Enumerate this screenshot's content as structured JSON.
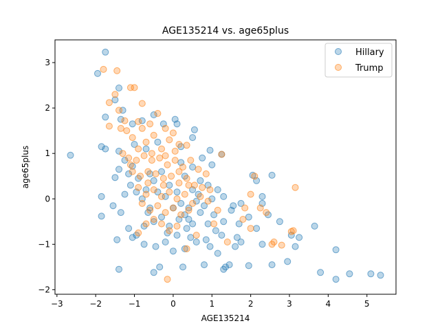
{
  "chart_data": {
    "type": "scatter",
    "title": "AGE135214 vs. age65plus",
    "xlabel": "AGE135214",
    "ylabel": "age65plus",
    "xlim": [
      -3.05,
      5.75
    ],
    "ylim": [
      -2.1,
      3.5
    ],
    "xticks": [
      -3,
      -2,
      -1,
      0,
      1,
      2,
      3,
      4,
      5
    ],
    "yticks": [
      -2,
      -1,
      0,
      1,
      2,
      3
    ],
    "grid": false,
    "legend_position": "top-right",
    "series": [
      {
        "name": "Hillary",
        "color": "#1f77b4",
        "alpha": 0.3,
        "points": [
          [
            -1.75,
            3.23
          ],
          [
            -1.95,
            2.76
          ],
          [
            -1.4,
            2.44
          ],
          [
            -1.5,
            2.18
          ],
          [
            -1.3,
            1.95
          ],
          [
            -1.75,
            1.8
          ],
          [
            -1.35,
            1.75
          ],
          [
            -1.05,
            1.65
          ],
          [
            -0.8,
            1.72
          ],
          [
            -0.5,
            1.85
          ],
          [
            -0.25,
            1.65
          ],
          [
            0.05,
            1.75
          ],
          [
            0.1,
            1.65
          ],
          [
            0.55,
            1.52
          ],
          [
            0.5,
            1.35
          ],
          [
            -1.85,
            1.15
          ],
          [
            -1.75,
            1.1
          ],
          [
            -1.4,
            1.05
          ],
          [
            -1.0,
            1.2
          ],
          [
            -0.7,
            1.1
          ],
          [
            -0.4,
            1.25
          ],
          [
            0.2,
            1.15
          ],
          [
            0.95,
            1.07
          ],
          [
            1.25,
            0.98
          ],
          [
            1.0,
            0.75
          ],
          [
            -2.65,
            0.96
          ],
          [
            -1.25,
            0.85
          ],
          [
            -1.05,
            0.72
          ],
          [
            -1.4,
            0.65
          ],
          [
            -1.15,
            0.55
          ],
          [
            -1.5,
            0.47
          ],
          [
            -1.1,
            0.3
          ],
          [
            -0.9,
            0.45
          ],
          [
            -0.7,
            0.2
          ],
          [
            -0.5,
            0.4
          ],
          [
            -0.3,
            0.6
          ],
          [
            -0.1,
            0.3
          ],
          [
            0.1,
            0.15
          ],
          [
            0.3,
            0.5
          ],
          [
            0.5,
            0.2
          ],
          [
            0.7,
            0.4
          ],
          [
            0.9,
            0.3
          ],
          [
            1.15,
            0.2
          ],
          [
            1.3,
            0.05
          ],
          [
            1.55,
            -0.15
          ],
          [
            1.75,
            -0.1
          ],
          [
            2.15,
            0.4
          ],
          [
            2.3,
            0.05
          ],
          [
            2.3,
            -0.1
          ],
          [
            2.55,
            0.52
          ],
          [
            2.05,
            0.52
          ],
          [
            -1.85,
            0.05
          ],
          [
            -1.55,
            -0.15
          ],
          [
            -1.85,
            -0.38
          ],
          [
            -1.35,
            -0.3
          ],
          [
            -1.15,
            -0.65
          ],
          [
            -0.95,
            -0.8
          ],
          [
            -0.75,
            -0.6
          ],
          [
            -0.5,
            -0.5
          ],
          [
            -0.3,
            -0.4
          ],
          [
            -0.1,
            -0.6
          ],
          [
            0.1,
            -0.8
          ],
          [
            0.3,
            -0.35
          ],
          [
            0.5,
            -0.55
          ],
          [
            0.7,
            -0.3
          ],
          [
            0.9,
            -0.55
          ],
          [
            1.1,
            -0.7
          ],
          [
            1.3,
            -0.5
          ],
          [
            1.5,
            -0.25
          ],
          [
            1.7,
            -0.55
          ],
          [
            1.95,
            -0.4
          ],
          [
            2.15,
            -0.65
          ],
          [
            2.45,
            -0.35
          ],
          [
            2.75,
            -0.5
          ],
          [
            3.05,
            -0.8
          ],
          [
            3.25,
            -0.85
          ],
          [
            3.65,
            -0.6
          ],
          [
            -1.45,
            -0.9
          ],
          [
            -1.05,
            -0.85
          ],
          [
            -0.75,
            -1.0
          ],
          [
            -0.45,
            -1.05
          ],
          [
            -0.2,
            -0.95
          ],
          [
            0.0,
            -1.15
          ],
          [
            0.3,
            -1.1
          ],
          [
            0.6,
            -0.95
          ],
          [
            0.95,
            -1.05
          ],
          [
            1.15,
            -1.2
          ],
          [
            1.35,
            -1.5
          ],
          [
            1.45,
            -1.45
          ],
          [
            1.65,
            -0.85
          ],
          [
            1.75,
            -0.95
          ],
          [
            1.95,
            -1.47
          ],
          [
            2.3,
            -1.0
          ],
          [
            2.55,
            -1.45
          ],
          [
            2.95,
            -1.38
          ],
          [
            3.15,
            -1.05
          ],
          [
            -1.4,
            -1.55
          ],
          [
            -0.35,
            -1.5
          ],
          [
            -0.5,
            -1.62
          ],
          [
            0.25,
            -1.5
          ],
          [
            0.8,
            -1.45
          ],
          [
            1.3,
            -1.55
          ],
          [
            3.8,
            -1.62
          ],
          [
            4.2,
            -1.12
          ],
          [
            4.2,
            -1.77
          ],
          [
            4.55,
            -1.65
          ],
          [
            5.1,
            -1.65
          ],
          [
            5.35,
            -1.68
          ],
          [
            -0.2,
            0.05
          ],
          [
            0.0,
            -0.2
          ],
          [
            0.2,
            -0.1
          ],
          [
            0.4,
            -0.2
          ],
          [
            0.6,
            -0.05
          ],
          [
            0.8,
            -0.15
          ],
          [
            1.0,
            0.0
          ],
          [
            -0.6,
            -0.2
          ],
          [
            -0.8,
            0.0
          ],
          [
            -0.4,
            0.15
          ],
          [
            0.2,
            0.8
          ],
          [
            0.5,
            0.7
          ],
          [
            0.75,
            0.9
          ],
          [
            0.35,
            -0.65
          ],
          [
            0.15,
            -0.45
          ],
          [
            0.45,
            -0.85
          ],
          [
            0.85,
            -0.9
          ],
          [
            1.05,
            -0.35
          ],
          [
            1.25,
            -0.8
          ],
          [
            1.6,
            -1.05
          ],
          [
            -0.15,
            -0.75
          ],
          [
            -0.65,
            -0.3
          ],
          [
            -0.95,
            0.15
          ],
          [
            -1.25,
            0.1
          ],
          [
            -0.6,
            0.55
          ],
          [
            0.65,
            0.1
          ],
          [
            0.4,
            -0.45
          ]
        ]
      },
      {
        "name": "Trump",
        "color": "#ff7f0e",
        "alpha": 0.3,
        "points": [
          [
            -1.8,
            2.85
          ],
          [
            -1.45,
            2.82
          ],
          [
            -1.5,
            2.3
          ],
          [
            -1.65,
            2.12
          ],
          [
            -1.1,
            2.45
          ],
          [
            -1.0,
            2.45
          ],
          [
            -0.8,
            2.1
          ],
          [
            -1.4,
            1.95
          ],
          [
            -1.35,
            1.55
          ],
          [
            -1.25,
            1.72
          ],
          [
            -1.65,
            1.6
          ],
          [
            -1.2,
            1.5
          ],
          [
            -0.9,
            1.7
          ],
          [
            -0.8,
            1.55
          ],
          [
            -0.6,
            1.65
          ],
          [
            -0.4,
            1.88
          ],
          [
            -0.2,
            1.55
          ],
          [
            0.0,
            1.45
          ],
          [
            -1.05,
            1.35
          ],
          [
            -0.9,
            1.1
          ],
          [
            -0.7,
            1.25
          ],
          [
            -0.5,
            1.4
          ],
          [
            -0.3,
            1.1
          ],
          [
            -0.1,
            1.3
          ],
          [
            0.15,
            1.2
          ],
          [
            0.35,
            1.18
          ],
          [
            -1.3,
            1.0
          ],
          [
            -1.15,
            0.9
          ],
          [
            -0.95,
            0.85
          ],
          [
            -0.75,
            0.95
          ],
          [
            -0.55,
            0.85
          ],
          [
            -0.35,
            0.9
          ],
          [
            -0.15,
            0.75
          ],
          [
            0.05,
            0.85
          ],
          [
            0.25,
            0.7
          ],
          [
            0.45,
            0.85
          ],
          [
            0.65,
            0.65
          ],
          [
            0.85,
            0.55
          ],
          [
            1.25,
            0.98
          ],
          [
            -1.05,
            0.6
          ],
          [
            -0.85,
            0.5
          ],
          [
            -0.65,
            0.6
          ],
          [
            -0.45,
            0.55
          ],
          [
            -0.25,
            0.45
          ],
          [
            -0.05,
            0.5
          ],
          [
            0.15,
            0.35
          ],
          [
            0.35,
            0.45
          ],
          [
            0.55,
            0.3
          ],
          [
            0.75,
            0.25
          ],
          [
            0.95,
            0.2
          ],
          [
            -0.9,
            0.25
          ],
          [
            -0.7,
            0.1
          ],
          [
            -0.5,
            0.2
          ],
          [
            -0.3,
            0.05
          ],
          [
            -0.1,
            0.15
          ],
          [
            0.1,
            0.0
          ],
          [
            0.3,
            0.1
          ],
          [
            0.5,
            -0.1
          ],
          [
            0.7,
            0.05
          ],
          [
            0.9,
            -0.05
          ],
          [
            -0.8,
            -0.1
          ],
          [
            -0.6,
            -0.25
          ],
          [
            -0.4,
            -0.15
          ],
          [
            -0.2,
            -0.3
          ],
          [
            0.0,
            -0.2
          ],
          [
            0.2,
            -0.35
          ],
          [
            0.4,
            -0.25
          ],
          [
            -0.5,
            -0.45
          ],
          [
            -0.3,
            -0.55
          ],
          [
            -0.1,
            -0.7
          ],
          [
            0.1,
            -0.6
          ],
          [
            -0.7,
            -0.55
          ],
          [
            -0.9,
            -0.75
          ],
          [
            1.85,
            -0.2
          ],
          [
            2.0,
            0.1
          ],
          [
            2.1,
            0.5
          ],
          [
            2.25,
            -0.2
          ],
          [
            2.4,
            -0.3
          ],
          [
            1.8,
            -0.45
          ],
          [
            1.05,
            -0.55
          ],
          [
            2.0,
            -0.65
          ],
          [
            2.6,
            -0.95
          ],
          [
            2.55,
            -1.0
          ],
          [
            2.8,
            -1.02
          ],
          [
            3.05,
            -0.72
          ],
          [
            3.1,
            -0.7
          ],
          [
            3.15,
            0.25
          ],
          [
            1.4,
            -0.95
          ],
          [
            -0.15,
            -1.77
          ],
          [
            0.35,
            -1.1
          ],
          [
            0.6,
            -0.8
          ],
          [
            -0.25,
            0.3
          ],
          [
            0.15,
            0.6
          ],
          [
            -0.55,
            1.0
          ],
          [
            0.05,
            1.05
          ],
          [
            -1.1,
            0.75
          ],
          [
            -0.2,
            0.95
          ],
          [
            0.4,
            0.3
          ],
          [
            -0.65,
            0.35
          ],
          [
            1.15,
            -0.25
          ]
        ]
      }
    ]
  }
}
